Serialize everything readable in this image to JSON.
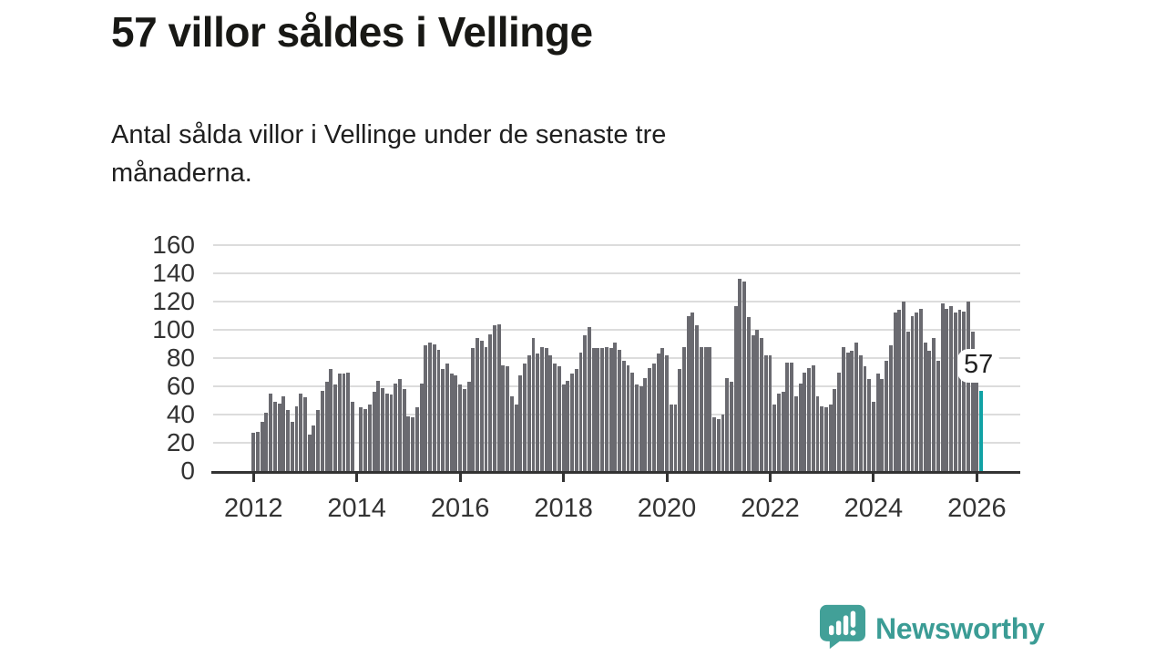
{
  "header": {
    "title": "57 villor såldes i Vellinge",
    "subtitle_line1": "Antal sålda villor i Vellinge under de senaste tre",
    "subtitle_line2": "månaderna."
  },
  "annotation": {
    "label": "57"
  },
  "footer": {
    "brand": "Newsworthy"
  },
  "colors": {
    "bar": "#6a6a70",
    "highlight": "#11a2a5",
    "grid": "#dcdcdc",
    "axis": "#333333",
    "logo_teal": "#3b9c95"
  },
  "chart_data": {
    "type": "bar",
    "title": "57 villor såldes i Vellinge",
    "subtitle": "Antal sålda villor i Vellinge under de senaste tre månaderna.",
    "x_unit": "month",
    "x_start": "2012-01",
    "x_end": "2026-02",
    "ylim": [
      0,
      160
    ],
    "grid": true,
    "y_ticks": [
      0,
      20,
      40,
      60,
      80,
      100,
      120,
      140,
      160
    ],
    "x_tick_labels": [
      "2012",
      "2014",
      "2016",
      "2018",
      "2020",
      "2022",
      "2024",
      "2026"
    ],
    "highlight_index": 169,
    "highlight_value": 57,
    "values": [
      27,
      28,
      35,
      41,
      55,
      49,
      48,
      53,
      43,
      35,
      46,
      55,
      52,
      26,
      32,
      43,
      57,
      63,
      72,
      61,
      69,
      69,
      70,
      49,
      0,
      45,
      44,
      47,
      56,
      64,
      59,
      55,
      54,
      62,
      65,
      58,
      39,
      38,
      45,
      62,
      89,
      91,
      90,
      86,
      72,
      76,
      69,
      68,
      61,
      58,
      63,
      87,
      94,
      92,
      88,
      97,
      103,
      104,
      75,
      74,
      53,
      47,
      68,
      76,
      82,
      94,
      83,
      88,
      87,
      82,
      76,
      74,
      61,
      64,
      69,
      72,
      84,
      96,
      102,
      87,
      87,
      87,
      88,
      87,
      91,
      86,
      78,
      75,
      70,
      61,
      60,
      66,
      73,
      76,
      83,
      87,
      82,
      47,
      47,
      72,
      88,
      110,
      112,
      103,
      88,
      88,
      88,
      38,
      37,
      40,
      66,
      63,
      117,
      136,
      134,
      109,
      96,
      100,
      94,
      82,
      82,
      47,
      55,
      56,
      77,
      77,
      53,
      62,
      70,
      73,
      75,
      53,
      46,
      45,
      47,
      58,
      70,
      88,
      84,
      85,
      91,
      82,
      74,
      65,
      49,
      69,
      65,
      78,
      89,
      112,
      114,
      120,
      99,
      110,
      112,
      115,
      91,
      85,
      94,
      78,
      119,
      115,
      117,
      112,
      114,
      113,
      120,
      99,
      72,
      57
    ]
  }
}
